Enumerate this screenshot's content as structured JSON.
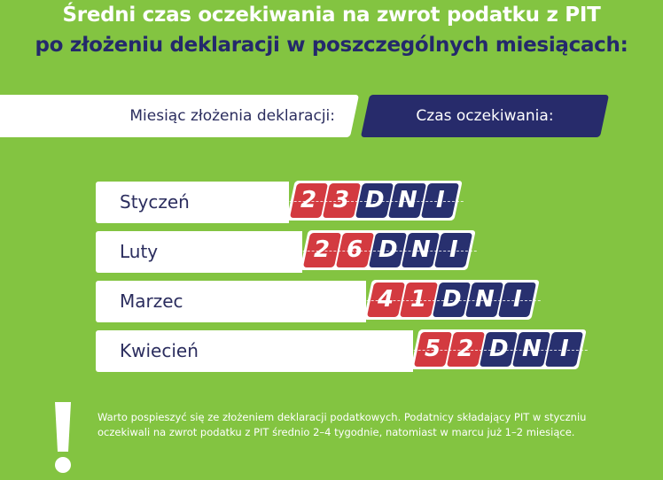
{
  "title": {
    "line1": "Średni czas oczekiwania na zwrot podatku z PIT",
    "line2": "po złożeniu deklaracji w poszczególnych miesiącach:"
  },
  "header": {
    "left": "Miesiąc złożenia deklaracji:",
    "right": "Czas oczekiwania:"
  },
  "colors": {
    "background": "#83c441",
    "digit_tile": "#d33a40",
    "unit_tile": "#28306f",
    "title2": "#24296b"
  },
  "chart_data": {
    "type": "bar",
    "orientation": "horizontal",
    "categories": [
      "Styczeń",
      "Luty",
      "Marzec",
      "Kwiecień"
    ],
    "values": [
      23,
      26,
      41,
      52
    ],
    "unit": "DNI"
  },
  "note": {
    "icon": "exclamation-icon",
    "text": "Warto pospieszyć się ze złożeniem deklaracji podatkowych. Podatnicy składający PIT w styczniu oczekiwali na zwrot podatku z PIT średnio 2–4 tygodnie, natomiast w marcu już 1–2 miesiące."
  }
}
